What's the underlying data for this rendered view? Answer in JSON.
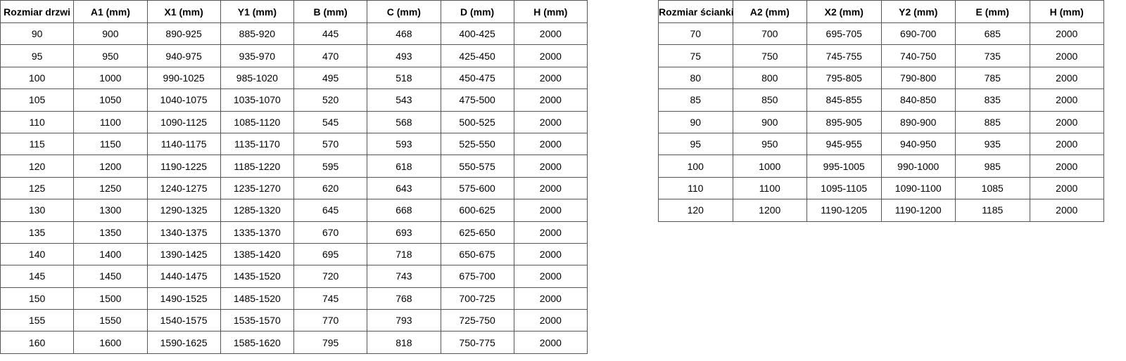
{
  "door_table": {
    "headers": [
      "Rozmiar drzwi",
      "A1 (mm)",
      "X1 (mm)",
      "Y1 (mm)",
      "B (mm)",
      "C (mm)",
      "D (mm)",
      "H (mm)"
    ],
    "rows": [
      [
        "90",
        "900",
        "890-925",
        "885-920",
        "445",
        "468",
        "400-425",
        "2000"
      ],
      [
        "95",
        "950",
        "940-975",
        "935-970",
        "470",
        "493",
        "425-450",
        "2000"
      ],
      [
        "100",
        "1000",
        "990-1025",
        "985-1020",
        "495",
        "518",
        "450-475",
        "2000"
      ],
      [
        "105",
        "1050",
        "1040-1075",
        "1035-1070",
        "520",
        "543",
        "475-500",
        "2000"
      ],
      [
        "110",
        "1100",
        "1090-1125",
        "1085-1120",
        "545",
        "568",
        "500-525",
        "2000"
      ],
      [
        "115",
        "1150",
        "1140-1175",
        "1135-1170",
        "570",
        "593",
        "525-550",
        "2000"
      ],
      [
        "120",
        "1200",
        "1190-1225",
        "1185-1220",
        "595",
        "618",
        "550-575",
        "2000"
      ],
      [
        "125",
        "1250",
        "1240-1275",
        "1235-1270",
        "620",
        "643",
        "575-600",
        "2000"
      ],
      [
        "130",
        "1300",
        "1290-1325",
        "1285-1320",
        "645",
        "668",
        "600-625",
        "2000"
      ],
      [
        "135",
        "1350",
        "1340-1375",
        "1335-1370",
        "670",
        "693",
        "625-650",
        "2000"
      ],
      [
        "140",
        "1400",
        "1390-1425",
        "1385-1420",
        "695",
        "718",
        "650-675",
        "2000"
      ],
      [
        "145",
        "1450",
        "1440-1475",
        "1435-1520",
        "720",
        "743",
        "675-700",
        "2000"
      ],
      [
        "150",
        "1500",
        "1490-1525",
        "1485-1520",
        "745",
        "768",
        "700-725",
        "2000"
      ],
      [
        "155",
        "1550",
        "1540-1575",
        "1535-1570",
        "770",
        "793",
        "725-750",
        "2000"
      ],
      [
        "160",
        "1600",
        "1590-1625",
        "1585-1620",
        "795",
        "818",
        "750-775",
        "2000"
      ]
    ]
  },
  "wall_table": {
    "headers": [
      "Rozmiar ścianki",
      "A2 (mm)",
      "X2 (mm)",
      "Y2 (mm)",
      "E (mm)",
      "H (mm)"
    ],
    "rows": [
      [
        "70",
        "700",
        "695-705",
        "690-700",
        "685",
        "2000"
      ],
      [
        "75",
        "750",
        "745-755",
        "740-750",
        "735",
        "2000"
      ],
      [
        "80",
        "800",
        "795-805",
        "790-800",
        "785",
        "2000"
      ],
      [
        "85",
        "850",
        "845-855",
        "840-850",
        "835",
        "2000"
      ],
      [
        "90",
        "900",
        "895-905",
        "890-900",
        "885",
        "2000"
      ],
      [
        "95",
        "950",
        "945-955",
        "940-950",
        "935",
        "2000"
      ],
      [
        "100",
        "1000",
        "995-1005",
        "990-1000",
        "985",
        "2000"
      ],
      [
        "110",
        "1100",
        "1095-1105",
        "1090-1100",
        "1085",
        "2000"
      ],
      [
        "120",
        "1200",
        "1190-1205",
        "1190-1200",
        "1185",
        "2000"
      ]
    ]
  }
}
